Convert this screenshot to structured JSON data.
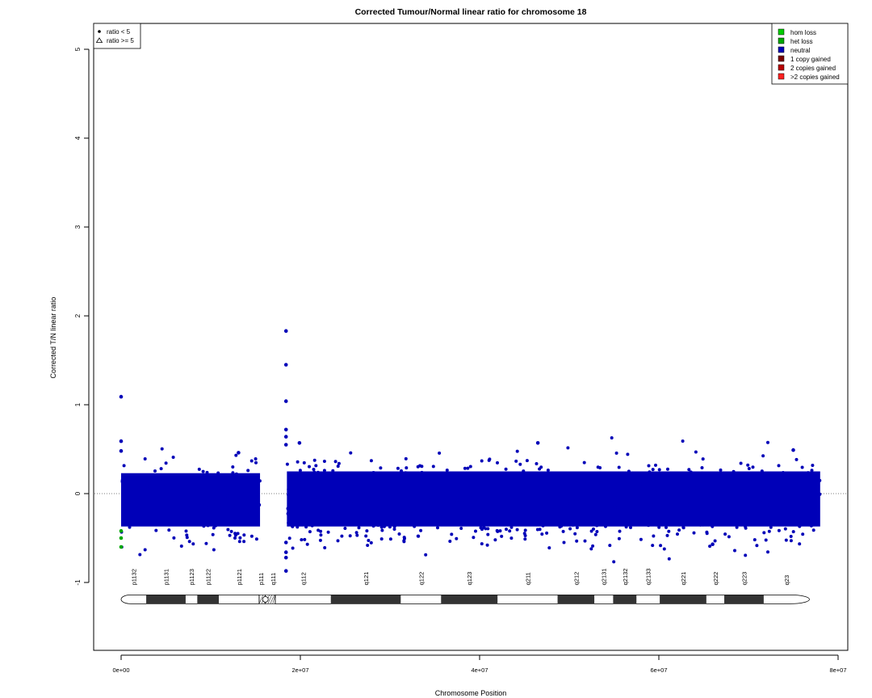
{
  "chart_data": {
    "type": "scatter",
    "title": "Corrected Tumour/Normal linear ratio for chromosome  18",
    "xlabel": "Chromosome Position",
    "ylabel": "Corrected T/N linear ratio",
    "xlim": [
      0,
      80000000
    ],
    "ylim": [
      -1.75,
      5.3
    ],
    "xticks": [
      {
        "value": 0,
        "label": "0e+00"
      },
      {
        "value": 20000000,
        "label": "2e+07"
      },
      {
        "value": 40000000,
        "label": "4e+07"
      },
      {
        "value": 60000000,
        "label": "6e+07"
      },
      {
        "value": 80000000,
        "label": "8e+07"
      }
    ],
    "yticks": [
      {
        "value": -1,
        "label": "-1"
      },
      {
        "value": 0,
        "label": "0"
      },
      {
        "value": 1,
        "label": "1"
      },
      {
        "value": 2,
        "label": "2"
      },
      {
        "value": 3,
        "label": "3"
      },
      {
        "value": 4,
        "label": "4"
      },
      {
        "value": 5,
        "label": "5"
      }
    ],
    "reference_line": {
      "y": 0,
      "style": "dotted"
    },
    "shape_legend": {
      "placement": "top-left",
      "items": [
        {
          "symbol": "filled-circle",
          "label": "ratio < 5"
        },
        {
          "symbol": "open-triangle",
          "label": "ratio >= 5"
        }
      ]
    },
    "color_legend": {
      "placement": "top-right",
      "items": [
        {
          "label": "hom loss",
          "color": "#00cc00"
        },
        {
          "label": "het loss",
          "color": "#00a800"
        },
        {
          "label": "neutral",
          "color": "#0000b8"
        },
        {
          "label": "1 copy gained",
          "color": "#7a0000"
        },
        {
          "label": "2 copies gained",
          "color": "#b80000"
        },
        {
          "label": ">2 copies gained",
          "color": "#ff2020"
        }
      ]
    },
    "point_bands": [
      {
        "name": "neutral",
        "x_range": [
          0,
          15500000
        ],
        "median": -0.09,
        "low": -0.37,
        "high": 0.23
      },
      {
        "name": "neutral",
        "x_range": [
          18500000,
          78000000
        ],
        "median": -0.09,
        "low": -0.37,
        "high": 0.25
      }
    ],
    "notable_points": [
      {
        "x": 0,
        "y": 1.09,
        "class": "neutral"
      },
      {
        "x": 0,
        "y": 0.59,
        "class": "neutral"
      },
      {
        "x": 0,
        "y": 0.48,
        "class": "neutral"
      },
      {
        "x": 0,
        "y": -0.5,
        "class": "het loss"
      },
      {
        "x": 0,
        "y": -0.6,
        "class": "het loss"
      },
      {
        "x": 0,
        "y": -0.42,
        "class": "het loss"
      },
      {
        "x": 18400000,
        "y": 1.83,
        "class": "neutral"
      },
      {
        "x": 18400000,
        "y": 1.45,
        "class": "neutral"
      },
      {
        "x": 18400000,
        "y": 1.04,
        "class": "neutral"
      },
      {
        "x": 18400000,
        "y": 0.72,
        "class": "neutral"
      },
      {
        "x": 18400000,
        "y": 0.64,
        "class": "neutral"
      },
      {
        "x": 18400000,
        "y": 0.55,
        "class": "neutral"
      },
      {
        "x": 18400000,
        "y": -0.55,
        "class": "neutral"
      },
      {
        "x": 18400000,
        "y": -0.66,
        "class": "neutral"
      },
      {
        "x": 18400000,
        "y": -0.72,
        "class": "neutral"
      },
      {
        "x": 18400000,
        "y": -0.87,
        "class": "neutral"
      },
      {
        "x": 19900000,
        "y": 0.57,
        "class": "neutral"
      },
      {
        "x": 46500000,
        "y": 0.57,
        "class": "neutral"
      },
      {
        "x": 75000000,
        "y": 0.49,
        "class": "neutral"
      },
      {
        "x": 13100000,
        "y": 0.46,
        "class": "neutral"
      },
      {
        "x": 66000000,
        "y": -0.57,
        "class": "neutral"
      }
    ],
    "ideogram": {
      "y": -1.19,
      "bands": [
        {
          "name": "p11.32",
          "start": 0,
          "end": 2800000,
          "stain": "gneg"
        },
        {
          "name": "p11.31",
          "start": 2800000,
          "end": 7200000,
          "stain": "gpos"
        },
        {
          "name": "p11.23",
          "start": 7200000,
          "end": 8500000,
          "stain": "gneg"
        },
        {
          "name": "p11.22",
          "start": 8500000,
          "end": 10900000,
          "stain": "gpos"
        },
        {
          "name": "p11.21",
          "start": 10900000,
          "end": 15400000,
          "stain": "gneg"
        },
        {
          "name": "p11.1",
          "start": 15400000,
          "end": 16100000,
          "stain": "acen"
        },
        {
          "name": "q11.1",
          "start": 16100000,
          "end": 17200000,
          "stain": "acen"
        },
        {
          "name": "q11.2",
          "start": 17200000,
          "end": 23400000,
          "stain": "gneg"
        },
        {
          "name": "q12.1",
          "start": 23400000,
          "end": 31200000,
          "stain": "gpos"
        },
        {
          "name": "q12.2",
          "start": 31200000,
          "end": 35700000,
          "stain": "gneg"
        },
        {
          "name": "q12.3",
          "start": 35700000,
          "end": 42000000,
          "stain": "gpos"
        },
        {
          "name": "q21.1",
          "start": 42000000,
          "end": 48700000,
          "stain": "gneg"
        },
        {
          "name": "q21.2",
          "start": 48700000,
          "end": 52800000,
          "stain": "gpos"
        },
        {
          "name": "q21.31",
          "start": 52800000,
          "end": 54900000,
          "stain": "gneg"
        },
        {
          "name": "q21.32",
          "start": 54900000,
          "end": 57500000,
          "stain": "gpos"
        },
        {
          "name": "q21.33",
          "start": 57500000,
          "end": 60100000,
          "stain": "gneg"
        },
        {
          "name": "q22.1",
          "start": 60100000,
          "end": 65300000,
          "stain": "gpos"
        },
        {
          "name": "q22.2",
          "start": 65300000,
          "end": 67300000,
          "stain": "gneg"
        },
        {
          "name": "q22.3",
          "start": 67300000,
          "end": 71700000,
          "stain": "gpos"
        },
        {
          "name": "q23",
          "start": 71700000,
          "end": 76800000,
          "stain": "gneg"
        }
      ]
    }
  }
}
